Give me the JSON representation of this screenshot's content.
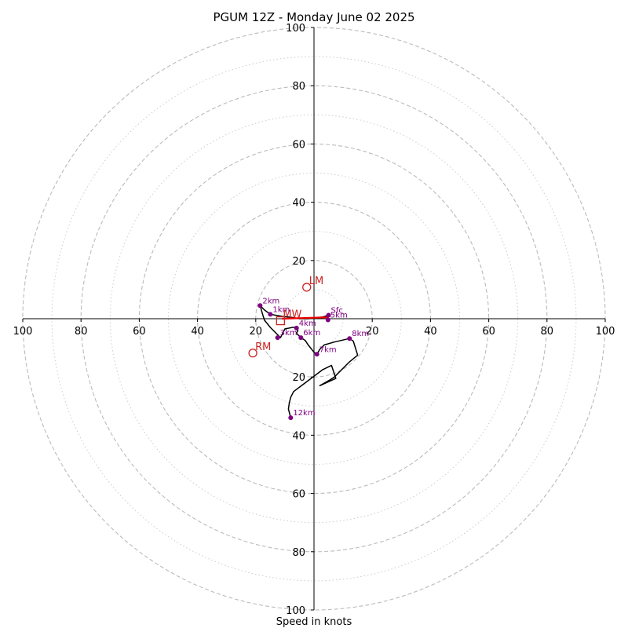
{
  "chart_data": {
    "type": "hodograph",
    "title": "PGUM 12Z - Monday June 02 2025",
    "xlabel": "Speed in knots",
    "range": 100,
    "ring_major": [
      20,
      40,
      60,
      80,
      100
    ],
    "ring_minor": [
      10,
      30,
      50,
      70,
      90
    ],
    "x_ticks": [
      {
        "value": -100,
        "label": "100"
      },
      {
        "value": -80,
        "label": "80"
      },
      {
        "value": -60,
        "label": "60"
      },
      {
        "value": -40,
        "label": "40"
      },
      {
        "value": -20,
        "label": "20"
      },
      {
        "value": 20,
        "label": "20"
      },
      {
        "value": 40,
        "label": "40"
      },
      {
        "value": 60,
        "label": "60"
      },
      {
        "value": 80,
        "label": "80"
      },
      {
        "value": 100,
        "label": "100"
      }
    ],
    "y_ticks": [
      {
        "value": 100,
        "label": "100"
      },
      {
        "value": 80,
        "label": "80"
      },
      {
        "value": 60,
        "label": "60"
      },
      {
        "value": 40,
        "label": "40"
      },
      {
        "value": 20,
        "label": "20"
      },
      {
        "value": -20,
        "label": "20"
      },
      {
        "value": -40,
        "label": "40"
      },
      {
        "value": -60,
        "label": "60"
      },
      {
        "value": -80,
        "label": "80"
      },
      {
        "value": -100,
        "label": "100"
      }
    ],
    "trace": [
      [
        5,
        1.2
      ],
      [
        3,
        0.6
      ],
      [
        0,
        0.2
      ],
      [
        -2,
        0
      ],
      [
        -5,
        0
      ],
      [
        -8,
        0.5
      ],
      [
        -11,
        0.8
      ],
      [
        -15,
        1.5
      ],
      [
        -17,
        3
      ],
      [
        -18.5,
        4.5
      ],
      [
        -17.7,
        1.7
      ],
      [
        -17,
        -0.5
      ],
      [
        -15,
        -3
      ],
      [
        -12.5,
        -5.5
      ],
      [
        -11.5,
        -6.5
      ],
      [
        -10,
        -3.5
      ],
      [
        -7,
        -2.9
      ],
      [
        -5.5,
        -4
      ],
      [
        -6,
        -5
      ],
      [
        -4.5,
        -6.5
      ],
      [
        -3,
        -7.5
      ],
      [
        -2,
        -9
      ],
      [
        0,
        -11.5
      ],
      [
        1,
        -12.2
      ],
      [
        2,
        -10.5
      ],
      [
        3.5,
        -9
      ],
      [
        7,
        -8
      ],
      [
        12.2,
        -6.8
      ],
      [
        13.5,
        -7.7
      ],
      [
        15,
        -12.5
      ],
      [
        12,
        -15
      ],
      [
        7,
        -20
      ],
      [
        5.5,
        -21
      ],
      [
        2,
        -23
      ],
      [
        7.5,
        -20.5
      ],
      [
        6,
        -16
      ],
      [
        3,
        -17.5
      ],
      [
        -3,
        -22
      ],
      [
        -7,
        -25
      ],
      [
        -8,
        -27
      ],
      [
        -8.5,
        -29
      ],
      [
        -8.8,
        -31
      ],
      [
        -8,
        -34
      ]
    ],
    "height_markers": [
      {
        "label": "Sfc",
        "u": 5,
        "v": 1.2
      },
      {
        "label": "1km",
        "u": -15,
        "v": 1.5
      },
      {
        "label": "2km",
        "u": -18.5,
        "v": 4.5
      },
      {
        "label": "3km",
        "u": -12.5,
        "v": -6.5
      },
      {
        "label": "4km",
        "u": -6,
        "v": -3.2
      },
      {
        "label": "5km",
        "u": 4.8,
        "v": -0.4
      },
      {
        "label": "6km",
        "u": -4.5,
        "v": -6.5
      },
      {
        "label": "7km",
        "u": 1,
        "v": -12.2
      },
      {
        "label": "8km",
        "u": 12.2,
        "v": -6.8
      },
      {
        "label": "12km",
        "u": -8,
        "v": -34
      }
    ],
    "motion_markers": [
      {
        "label": "LM",
        "u": -2.5,
        "v": 10.8,
        "shape": "circle"
      },
      {
        "label": "RM",
        "u": -21,
        "v": -11.8,
        "shape": "circle"
      },
      {
        "label": "MW",
        "u": -11.5,
        "v": -0.7,
        "shape": "square"
      }
    ],
    "shear_vector": {
      "from": [
        5,
        0.5
      ],
      "to": [
        -11,
        0
      ]
    },
    "colors": {
      "trace": "#000000",
      "height_marker": "#800080",
      "motion": "#cc2222",
      "grid_major": "#bbbbbb",
      "grid_minor": "#cccccc"
    }
  }
}
